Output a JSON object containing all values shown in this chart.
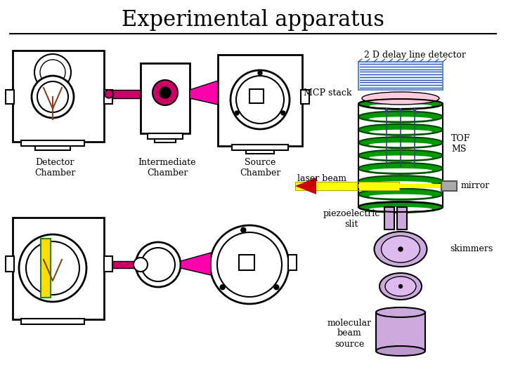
{
  "title": "Experimental apparatus",
  "title_fontsize": 22,
  "title_font": "serif",
  "bg_color": "#ffffff",
  "labels": {
    "2d_detector": "2 D delay line detector",
    "mcp_stack": "MCP stack",
    "laser_beam": "laser beam",
    "tof_ms": "TOF\nMS",
    "mirror": "mirror",
    "piezoelectric": "piezoelectric\nslit",
    "skimmers": "skimmers",
    "molecular_beam": "molecular\nbeam\nsource",
    "detector_chamber": "Detector\nChamber",
    "intermediate_chamber": "Intermediate\nChamber",
    "source_chamber": "Source\nChamber"
  },
  "colors": {
    "green_ring": "#009900",
    "pink_detector": "#ffaacc",
    "lavender": "#ccaadd",
    "lavender2": "#bb99cc",
    "cyan_winding": "#aaddff",
    "yellow_beam": "#ffff00",
    "red_triangle": "#cc0000",
    "magenta_beam": "#cc0066",
    "magenta_cone": "#ff00aa",
    "dark_outline": "#000000",
    "tof_outline": "#333333",
    "gray_mirror": "#888888",
    "white": "#ffffff",
    "gold": "#ffdd00"
  }
}
